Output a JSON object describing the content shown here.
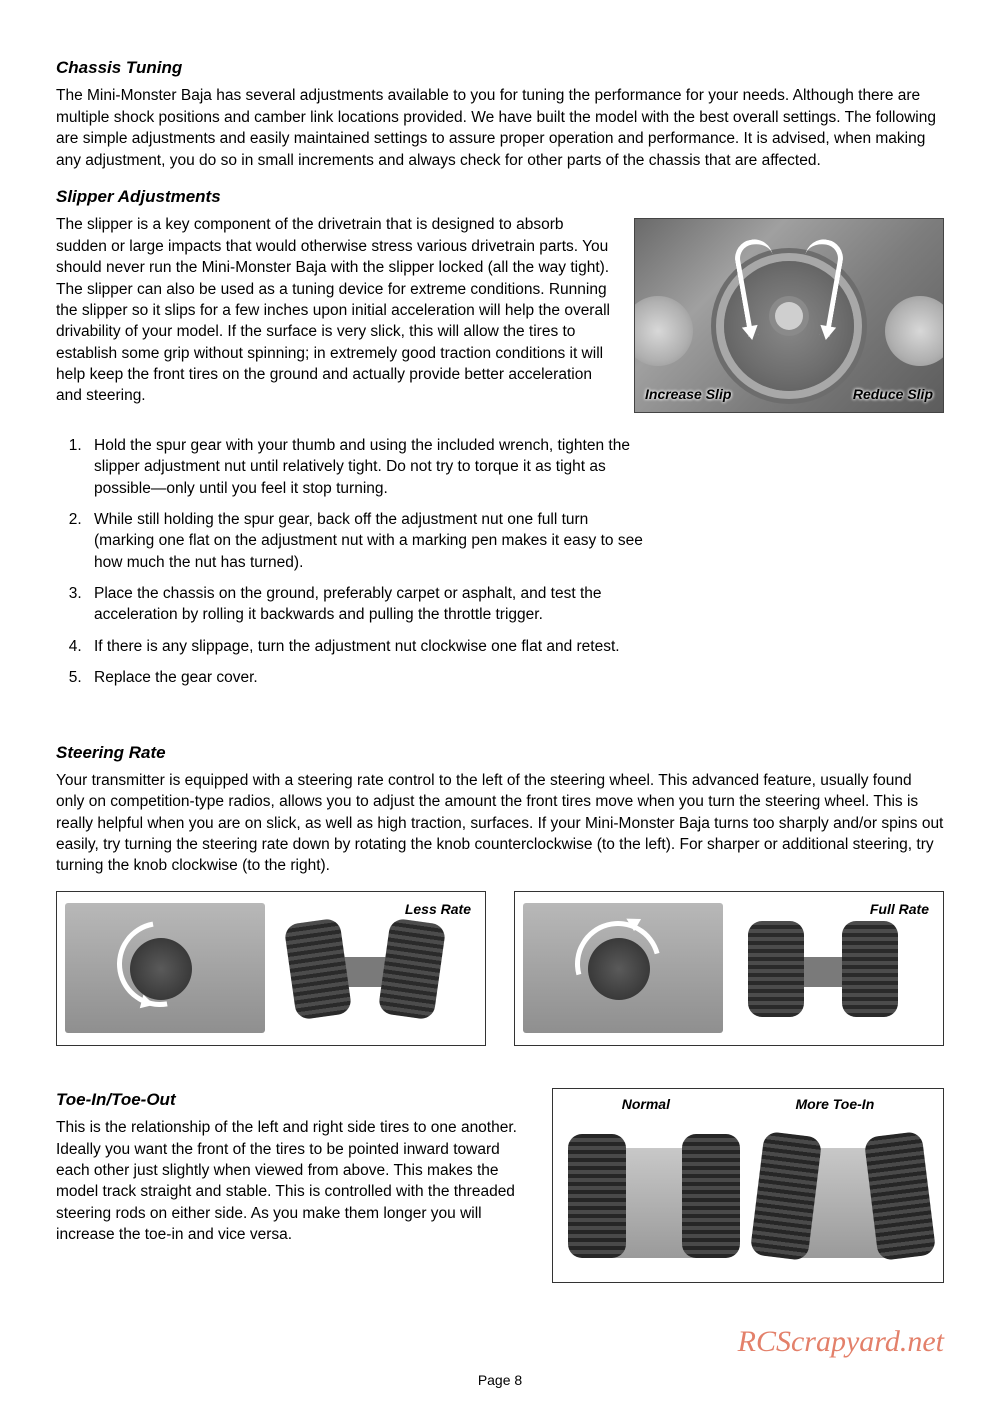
{
  "chassis": {
    "heading": "Chassis Tuning",
    "para": "The Mini-Monster Baja has several adjustments available to you for tuning the performance for your needs. Although there are multiple shock positions and camber link locations provided. We have built the model with the best overall settings. The following are simple adjustments and easily maintained settings to assure proper operation and performance. It is advised, when making any adjustment, you do so in small increments and always check for other parts of the chassis that are affected."
  },
  "slipper": {
    "heading": "Slipper Adjustments",
    "para": "The slipper is a key component of the drivetrain that is designed to absorb sudden or large impacts that would otherwise stress various drivetrain parts. You should never run the Mini-Monster Baja with the slipper locked (all the way tight). The slipper can also be used as a tuning device for extreme conditions. Running the slipper so it slips for a few inches upon initial acceleration will help the overall drivability of your model. If the surface is very slick, this will allow the tires to establish some grip without spinning; in extremely good traction conditions it will help keep the front tires on the ground and actually provide better acceleration and steering.",
    "label_left": "Increase Slip",
    "label_right": "Reduce Slip",
    "steps": [
      "Hold the spur gear with your thumb and using the included wrench, tighten the slipper adjustment nut until relatively tight. Do not try to torque it as tight as possible—only until you feel it stop turning.",
      "While still holding the spur gear, back off the adjustment nut one full turn (marking one flat on the adjustment nut with a marking pen makes it easy to see how much the nut has turned).",
      "Place the chassis on the ground, preferably carpet or asphalt, and test the acceleration by rolling it backwards and pulling the throttle trigger.",
      "If there is any slippage, turn the adjustment nut clockwise one flat and retest.",
      "Replace the gear cover."
    ]
  },
  "steering": {
    "heading": "Steering Rate",
    "para": "Your transmitter is equipped with a steering rate control to the left of the steering wheel. This advanced feature, usually found only on competition-type radios, allows you to adjust the amount the front tires move when you turn the steering wheel. This is really helpful when you are on slick, as well as high traction, surfaces. If your Mini-Monster Baja turns too sharply and/or spins out easily, try turning the steering rate down by rotating the knob counterclockwise (to the left). For sharper or additional steering, try turning the knob clockwise (to the right).",
    "less_label": "Less Rate",
    "full_label": "Full Rate"
  },
  "toe": {
    "heading": "Toe-In/Toe-Out",
    "para": "This is the relationship of the left and right side tires to one another. Ideally you want the front of the tires to be pointed inward toward each other just slightly when viewed from above. This makes the model track straight and stable. This is controlled with the threaded steering rods on either side. As you make them longer you will increase the toe-in and vice versa.",
    "label_normal": "Normal",
    "label_more": "More Toe-In"
  },
  "watermark": "RCScrapyard.net",
  "page_number": "Page 8",
  "colors": {
    "text": "#000000",
    "watermark": "#e0735a",
    "background": "#ffffff"
  }
}
